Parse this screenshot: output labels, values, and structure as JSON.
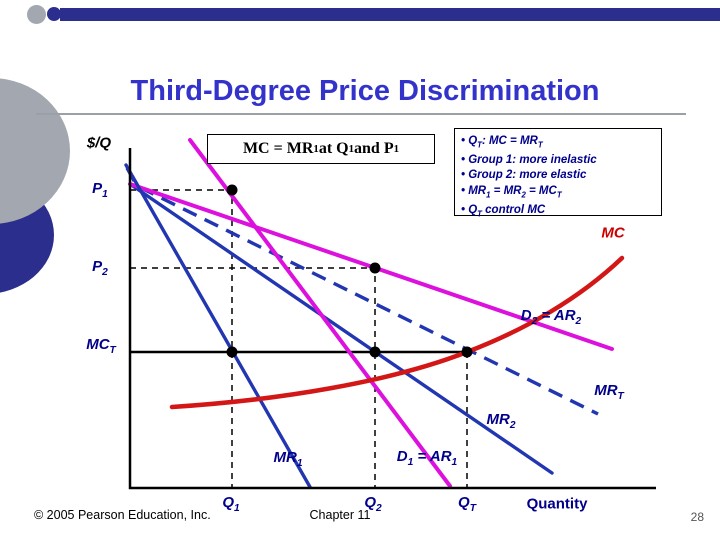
{
  "slide": {
    "title": "Third-Degree Price Discrimination",
    "footer_left": "© 2005 Pearson Education, Inc.",
    "footer_center": "Chapter 11",
    "page_number": "28"
  },
  "colors": {
    "title_blue": "#3333cc",
    "bar_navy": "#2b2e8c",
    "blob_gray": "#a3a7b0",
    "label_navy": "#00008b",
    "line_blue": "#2236b2",
    "line_magenta": "#dd11dd",
    "curve_red": "#d31717",
    "mc_label_red": "#cc0000",
    "guide_black": "#000000"
  },
  "graph": {
    "y_axis_title": "$/Q",
    "annotation": [
      {
        "t": "MC = MR"
      },
      {
        "t": "1",
        "sub": true
      },
      {
        "t": " at Q"
      },
      {
        "t": "1",
        "sub": true
      },
      {
        "t": " and P"
      },
      {
        "t": "1",
        "sub": true
      }
    ],
    "info_box_lines": [
      [
        {
          "t": "• Q"
        },
        {
          "t": "T",
          "sub": true
        },
        {
          "t": ": MC = MR"
        },
        {
          "t": "T",
          "sub": true
        }
      ],
      [
        {
          "t": "• Group 1: more inelastic"
        }
      ],
      [
        {
          "t": "• Group 2: more elastic"
        }
      ],
      [
        {
          "t": "• MR"
        },
        {
          "t": "1",
          "sub": true
        },
        {
          "t": " = MR"
        },
        {
          "t": "2",
          "sub": true
        },
        {
          "t": " = MC"
        },
        {
          "t": "T",
          "sub": true
        }
      ],
      [
        {
          "t": "• Q"
        },
        {
          "t": "T",
          "sub": true
        },
        {
          "t": " control MC"
        }
      ]
    ],
    "labels": {
      "p1": [
        {
          "t": "P"
        },
        {
          "t": "1",
          "sub": true
        }
      ],
      "p2": [
        {
          "t": "P"
        },
        {
          "t": "2",
          "sub": true
        }
      ],
      "mct": [
        {
          "t": "MC"
        },
        {
          "t": "T",
          "sub": true
        }
      ],
      "q1": [
        {
          "t": "Q"
        },
        {
          "t": "1",
          "sub": true
        }
      ],
      "q2": [
        {
          "t": "Q"
        },
        {
          "t": "2",
          "sub": true
        }
      ],
      "qt": [
        {
          "t": "Q"
        },
        {
          "t": "T",
          "sub": true
        }
      ],
      "quantity": "Quantity",
      "mc": "MC",
      "d2": [
        {
          "t": "D"
        },
        {
          "t": "2",
          "sub": true
        },
        {
          "t": " = AR"
        },
        {
          "t": "2",
          "sub": true
        }
      ],
      "mrt": [
        {
          "t": "MR"
        },
        {
          "t": "T",
          "sub": true
        }
      ],
      "mr2": [
        {
          "t": "MR"
        },
        {
          "t": "2",
          "sub": true
        }
      ],
      "mr1": [
        {
          "t": "MR"
        },
        {
          "t": "1",
          "sub": true
        }
      ],
      "d1": [
        {
          "t": "D"
        },
        {
          "t": "1",
          "sub": true
        },
        {
          "t": " = AR"
        },
        {
          "t": "1",
          "sub": true
        }
      ]
    }
  },
  "figure": {
    "type": "third-degree price discrimination diagram",
    "curves": [
      {
        "name": "MC",
        "color": "red",
        "style": "solid upward-sloping convex curve"
      },
      {
        "name": "MCT",
        "color": "black",
        "style": "horizontal line at the level where MRT = MC"
      },
      {
        "name": "D1 = AR1",
        "color": "magenta",
        "style": "steep solid demand line (more inelastic group)"
      },
      {
        "name": "MR1",
        "color": "blue",
        "style": "steep solid marginal revenue line"
      },
      {
        "name": "D2 = AR2",
        "color": "magenta",
        "style": "flat solid demand line (more elastic group)"
      },
      {
        "name": "MR2",
        "color": "blue",
        "style": "solid marginal revenue line"
      },
      {
        "name": "MRT",
        "color": "blue",
        "style": "dashed total marginal revenue line"
      }
    ],
    "marked_points": [
      "(Q1, P1)",
      "(Q2, P2)",
      "(Q1, MCT)",
      "(Q2, MCT)",
      "(QT, MCT)"
    ],
    "y_axis_markings": [
      "P1",
      "P2",
      "MCT"
    ],
    "x_axis_markings": [
      "Q1",
      "Q2",
      "QT"
    ]
  }
}
